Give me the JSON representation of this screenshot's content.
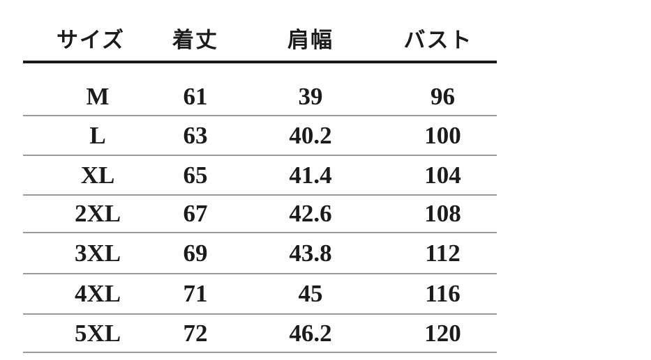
{
  "size_chart": {
    "columns": [
      "サイズ",
      "着丈",
      "肩幅",
      "バスト"
    ],
    "rows": [
      [
        "M",
        "61",
        "39",
        "96"
      ],
      [
        "L",
        "63",
        "40.2",
        "100"
      ],
      [
        "XL",
        "65",
        "41.4",
        "104"
      ],
      [
        "2XL",
        "67",
        "42.6",
        "108"
      ],
      [
        "3XL",
        "69",
        "43.8",
        "112"
      ],
      [
        "4XL",
        "71",
        "45",
        "116"
      ],
      [
        "5XL",
        "72",
        "46.2",
        "120"
      ]
    ]
  },
  "chart_data": {
    "type": "table",
    "title": "",
    "columns": [
      "サイズ",
      "着丈",
      "肩幅",
      "バスト"
    ],
    "rows": [
      {
        "サイズ": "M",
        "着丈": 61,
        "肩幅": 39,
        "バスト": 96
      },
      {
        "サイズ": "L",
        "着丈": 63,
        "肩幅": 40.2,
        "バスト": 100
      },
      {
        "サイズ": "XL",
        "着丈": 65,
        "肩幅": 41.4,
        "バスト": 104
      },
      {
        "サイズ": "2XL",
        "着丈": 67,
        "肩幅": 42.6,
        "バスト": 108
      },
      {
        "サイズ": "3XL",
        "着丈": 69,
        "肩幅": 43.8,
        "バスト": 112
      },
      {
        "サイズ": "4XL",
        "着丈": 71,
        "肩幅": 45,
        "バスト": 116
      },
      {
        "サイズ": "5XL",
        "着丈": 72,
        "肩幅": 46.2,
        "バスト": 120
      }
    ]
  },
  "colors": {
    "text": "#1b1b1b",
    "header-rule": "#1a1a1a",
    "row-rule": "#9a9a9a",
    "bg": "#ffffff"
  }
}
